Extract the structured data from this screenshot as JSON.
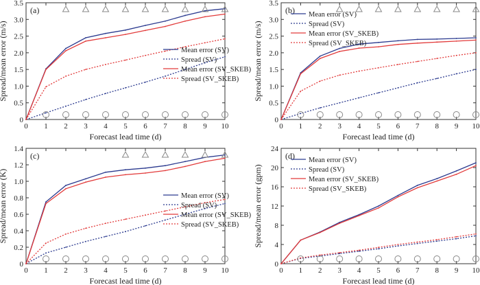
{
  "figure": {
    "x_label": "Forecast lead time (d)",
    "legend": [
      "Mean error (SV)",
      "Spread (SV)",
      "Mean error (SV_SKEB)",
      "Spread (SV_SKEB)"
    ],
    "colors": {
      "sv": "#2b3a8f",
      "skeb": "#e23a3a",
      "marker": "#888888",
      "axis": "#333333"
    }
  },
  "chart_data": [
    {
      "type": "line",
      "panel_label": "(a)",
      "ylabel": "Spread/mean error (m/s)",
      "xlabel": "Forecast lead time (d)",
      "x": [
        0,
        1,
        2,
        3,
        4,
        5,
        6,
        7,
        8,
        9,
        10
      ],
      "xticks": [
        0,
        1,
        2,
        3,
        4,
        5,
        6,
        7,
        8,
        9,
        10
      ],
      "ylim": [
        0,
        3.5
      ],
      "yticks": [
        0,
        0.5,
        1.0,
        1.5,
        2.0,
        2.5,
        3.0,
        3.5
      ],
      "ytick_labels": [
        "0",
        "0.5",
        "1.0",
        "1.5",
        "2.0",
        "2.5",
        "3.0",
        "3.5"
      ],
      "series": [
        {
          "name": "Mean error (SV)",
          "color": "#2b3a8f",
          "style": "solid",
          "values": [
            0,
            1.52,
            2.13,
            2.45,
            2.58,
            2.68,
            2.82,
            2.95,
            3.12,
            3.26,
            3.32
          ]
        },
        {
          "name": "Spread (SV)",
          "color": "#2b3a8f",
          "style": "dotted",
          "values": [
            0,
            0.2,
            0.4,
            0.6,
            0.78,
            0.95,
            1.12,
            1.3,
            1.5,
            1.7,
            1.88
          ]
        },
        {
          "name": "Mean error (SV_SKEB)",
          "color": "#e23a3a",
          "style": "solid",
          "values": [
            0,
            1.5,
            2.06,
            2.35,
            2.45,
            2.55,
            2.67,
            2.79,
            2.95,
            3.08,
            3.16
          ]
        },
        {
          "name": "Spread (SV_SKEB)",
          "color": "#e23a3a",
          "style": "dotted",
          "values": [
            0,
            0.98,
            1.3,
            1.5,
            1.65,
            1.78,
            1.92,
            2.05,
            2.18,
            2.3,
            2.42
          ]
        }
      ],
      "triangle_days": [
        2,
        3,
        4,
        5,
        6,
        7,
        8,
        9,
        10
      ],
      "circle_days": [
        1,
        2,
        3,
        4,
        5,
        6,
        7,
        8,
        9,
        10
      ],
      "legend_position": "lower-right"
    },
    {
      "type": "line",
      "panel_label": "(b)",
      "ylabel": "Spread/mean error (m/s)",
      "xlabel": "Forecast lead time (d)",
      "x": [
        0,
        1,
        2,
        3,
        4,
        5,
        6,
        7,
        8,
        9,
        10
      ],
      "xticks": [
        0,
        1,
        2,
        3,
        4,
        5,
        6,
        7,
        8,
        9,
        10
      ],
      "ylim": [
        0,
        3.5
      ],
      "yticks": [
        0,
        0.5,
        1.0,
        1.5,
        2.0,
        2.5,
        3.0,
        3.5
      ],
      "ytick_labels": [
        "0",
        "0.5",
        "1.0",
        "1.5",
        "2.0",
        "2.5",
        "3.0",
        "3.5"
      ],
      "series": [
        {
          "name": "Mean error (SV)",
          "color": "#2b3a8f",
          "style": "solid",
          "values": [
            0,
            1.4,
            1.9,
            2.13,
            2.26,
            2.31,
            2.36,
            2.4,
            2.41,
            2.43,
            2.45
          ]
        },
        {
          "name": "Spread (SV)",
          "color": "#2b3a8f",
          "style": "dotted",
          "values": [
            0,
            0.18,
            0.35,
            0.5,
            0.65,
            0.8,
            0.95,
            1.1,
            1.23,
            1.37,
            1.5
          ]
        },
        {
          "name": "Mean error (SV_SKEB)",
          "color": "#e23a3a",
          "style": "solid",
          "values": [
            0,
            1.37,
            1.83,
            2.04,
            2.14,
            2.18,
            2.25,
            2.29,
            2.32,
            2.35,
            2.38
          ]
        },
        {
          "name": "Spread (SV_SKEB)",
          "color": "#e23a3a",
          "style": "dotted",
          "values": [
            0,
            0.85,
            1.15,
            1.33,
            1.45,
            1.55,
            1.65,
            1.74,
            1.83,
            1.92,
            2.0
          ]
        }
      ],
      "triangle_days": [
        3,
        4,
        5,
        6,
        7,
        8,
        9,
        10
      ],
      "circle_days": [
        1,
        2,
        3,
        4,
        5,
        6,
        7,
        8,
        9,
        10
      ],
      "legend_position": "top-left"
    },
    {
      "type": "line",
      "panel_label": "(c)",
      "ylabel": "Spread/mean error (K)",
      "xlabel": "Forecast lead time (d)",
      "x": [
        0,
        1,
        2,
        3,
        4,
        5,
        6,
        7,
        8,
        9,
        10
      ],
      "xticks": [
        0,
        1,
        2,
        3,
        4,
        5,
        6,
        7,
        8,
        9,
        10
      ],
      "ylim": [
        0,
        1.4
      ],
      "yticks": [
        0,
        0.2,
        0.4,
        0.6,
        0.8,
        1.0,
        1.2,
        1.4
      ],
      "ytick_labels": [
        "0",
        "0.2",
        "0.4",
        "0.6",
        "0.8",
        "1.0",
        "1.2",
        "1.4"
      ],
      "series": [
        {
          "name": "Mean error (SV)",
          "color": "#2b3a8f",
          "style": "solid",
          "values": [
            0,
            0.75,
            0.95,
            1.03,
            1.11,
            1.14,
            1.16,
            1.19,
            1.24,
            1.29,
            1.32
          ]
        },
        {
          "name": "Spread (SV)",
          "color": "#2b3a8f",
          "style": "dotted",
          "values": [
            0,
            0.13,
            0.2,
            0.27,
            0.33,
            0.39,
            0.46,
            0.53,
            0.6,
            0.67,
            0.73
          ]
        },
        {
          "name": "Mean error (SV_SKEB)",
          "color": "#e23a3a",
          "style": "solid",
          "values": [
            0,
            0.73,
            0.91,
            0.99,
            1.05,
            1.08,
            1.1,
            1.13,
            1.18,
            1.24,
            1.28
          ]
        },
        {
          "name": "Spread (SV_SKEB)",
          "color": "#e23a3a",
          "style": "dotted",
          "values": [
            0,
            0.25,
            0.36,
            0.43,
            0.49,
            0.54,
            0.59,
            0.64,
            0.69,
            0.74,
            0.78
          ]
        }
      ],
      "triangle_days": [
        5,
        6,
        7,
        8,
        9,
        10
      ],
      "circle_days": [
        1,
        2,
        3,
        4,
        5,
        6,
        7,
        8,
        9,
        10
      ],
      "legend_position": "lower-right"
    },
    {
      "type": "line",
      "panel_label": "(d)",
      "ylabel": "Spread/mean error (gpm)",
      "xlabel": "Forecast lead time (d)",
      "x": [
        0,
        1,
        2,
        3,
        4,
        5,
        6,
        7,
        8,
        9,
        10
      ],
      "xticks": [
        0,
        1,
        2,
        3,
        4,
        5,
        6,
        7,
        8,
        9,
        10
      ],
      "ylim": [
        0,
        24
      ],
      "yticks": [
        0,
        4,
        8,
        12,
        16,
        20,
        24
      ],
      "ytick_labels": [
        "0",
        "4",
        "8",
        "12",
        "16",
        "20",
        "24"
      ],
      "series": [
        {
          "name": "Mean error (SV)",
          "color": "#2b3a8f",
          "style": "solid",
          "values": [
            0,
            4.9,
            6.6,
            8.6,
            10.2,
            12.0,
            14.2,
            16.3,
            17.7,
            19.3,
            21.0
          ]
        },
        {
          "name": "Spread (SV)",
          "color": "#2b3a8f",
          "style": "dotted",
          "values": [
            0,
            1.1,
            1.6,
            2.1,
            2.6,
            3.1,
            3.7,
            4.2,
            4.7,
            5.2,
            5.8
          ]
        },
        {
          "name": "Mean error (SV_SKEB)",
          "color": "#e23a3a",
          "style": "solid",
          "values": [
            0,
            4.9,
            6.5,
            8.4,
            10.0,
            11.6,
            13.9,
            15.8,
            17.2,
            18.6,
            20.4
          ]
        },
        {
          "name": "Spread (SV_SKEB)",
          "color": "#e23a3a",
          "style": "dotted",
          "values": [
            0,
            1.2,
            1.8,
            2.3,
            2.8,
            3.4,
            4.0,
            4.5,
            5.0,
            5.6,
            6.2
          ]
        }
      ],
      "triangle_days": [],
      "circle_days": [
        1,
        2,
        3,
        4,
        5,
        6,
        7,
        8,
        9,
        10
      ],
      "legend_position": "top-left"
    }
  ]
}
